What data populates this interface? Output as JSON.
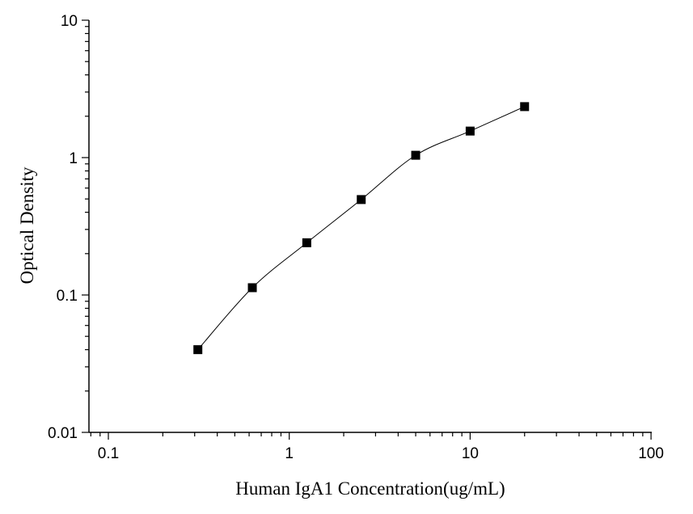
{
  "chart_data": {
    "type": "scatter",
    "title": "",
    "xlabel": "Human IgA1 Concentration(ug/mL)",
    "ylabel": "Optical Density",
    "xscale": "log",
    "yscale": "log",
    "xlim": [
      0.1,
      100
    ],
    "ylim": [
      0.01,
      10
    ],
    "x_ticks": [
      "0.1",
      "1",
      "10",
      "100"
    ],
    "y_ticks": [
      "0.01",
      "0.1",
      "1",
      "10"
    ],
    "grid": false,
    "legend": "none",
    "marker": "square",
    "color": "#000000",
    "fit_line": true,
    "series": [
      {
        "x": [
          0.3125,
          0.625,
          1.25,
          2.5,
          5,
          10,
          20
        ],
        "y": [
          0.04,
          0.113,
          0.24,
          0.495,
          1.04,
          1.56,
          2.35
        ]
      }
    ]
  }
}
